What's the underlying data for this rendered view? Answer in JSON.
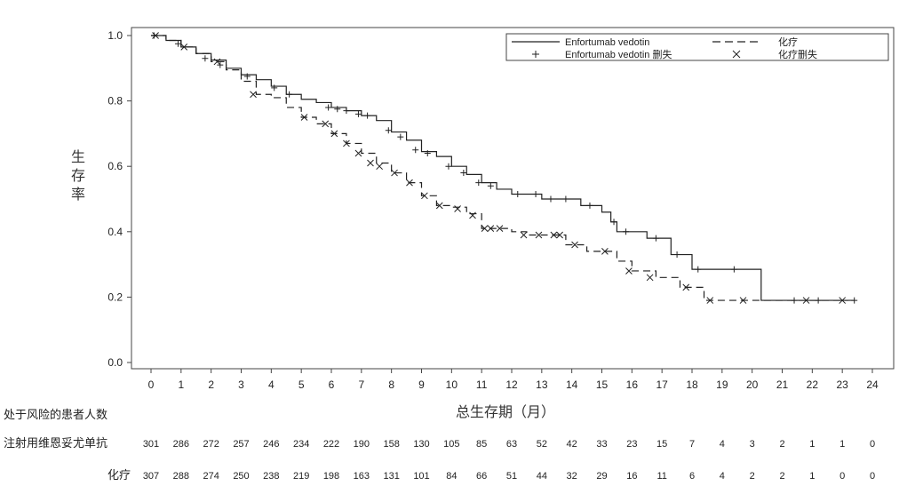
{
  "chart_data": {
    "type": "line",
    "subtype": "kaplan-meier",
    "ylabel_chars": [
      "生",
      "存",
      "率"
    ],
    "xlabel": "总生存期（月）",
    "ylim": [
      0,
      1.0
    ],
    "xlim": [
      0,
      24
    ],
    "yticks": [
      "0.0",
      "0.2",
      "0.4",
      "0.6",
      "0.8",
      "1.0"
    ],
    "xticks": [
      "0",
      "1",
      "2",
      "3",
      "4",
      "5",
      "6",
      "7",
      "8",
      "9",
      "10",
      "11",
      "12",
      "13",
      "14",
      "15",
      "16",
      "17",
      "18",
      "19",
      "20",
      "21",
      "22",
      "23",
      "24"
    ],
    "legend": {
      "position": "top-right",
      "entries": [
        {
          "label": "Enfortumab vedotin",
          "style": "solid-line"
        },
        {
          "label": "化疗",
          "style": "dashed-line"
        },
        {
          "label": "Enfortumab vedotin 删失",
          "style": "plus-marker"
        },
        {
          "label": "化疗删失",
          "style": "x-marker"
        }
      ]
    },
    "series": [
      {
        "name": "Enfortumab vedotin",
        "steps": [
          [
            0,
            1.0
          ],
          [
            0.5,
            0.985
          ],
          [
            1,
            0.965
          ],
          [
            1.5,
            0.945
          ],
          [
            2,
            0.925
          ],
          [
            2.5,
            0.9
          ],
          [
            3,
            0.88
          ],
          [
            3.5,
            0.865
          ],
          [
            4,
            0.845
          ],
          [
            4.5,
            0.82
          ],
          [
            5,
            0.805
          ],
          [
            5.5,
            0.795
          ],
          [
            6,
            0.78
          ],
          [
            6.5,
            0.77
          ],
          [
            7,
            0.755
          ],
          [
            7.5,
            0.74
          ],
          [
            8,
            0.705
          ],
          [
            8.5,
            0.68
          ],
          [
            9,
            0.645
          ],
          [
            9.5,
            0.63
          ],
          [
            10,
            0.6
          ],
          [
            10.5,
            0.575
          ],
          [
            11,
            0.55
          ],
          [
            11.5,
            0.53
          ],
          [
            12,
            0.515
          ],
          [
            12.5,
            0.515
          ],
          [
            13,
            0.5
          ],
          [
            14,
            0.5
          ],
          [
            14.3,
            0.48
          ],
          [
            15,
            0.46
          ],
          [
            15.3,
            0.43
          ],
          [
            15.5,
            0.4
          ],
          [
            16.5,
            0.38
          ],
          [
            17.3,
            0.33
          ],
          [
            18,
            0.285
          ],
          [
            19.5,
            0.285
          ],
          [
            20.3,
            0.19
          ],
          [
            23.4,
            0.19
          ]
        ],
        "censor": [
          [
            0.1,
            1.0
          ],
          [
            0.9,
            0.975
          ],
          [
            1.8,
            0.93
          ],
          [
            2.3,
            0.91
          ],
          [
            3.2,
            0.875
          ],
          [
            4.1,
            0.84
          ],
          [
            4.6,
            0.82
          ],
          [
            5.9,
            0.78
          ],
          [
            6.2,
            0.775
          ],
          [
            6.5,
            0.77
          ],
          [
            6.9,
            0.76
          ],
          [
            7.2,
            0.755
          ],
          [
            7.9,
            0.71
          ],
          [
            8.3,
            0.69
          ],
          [
            8.8,
            0.65
          ],
          [
            9.2,
            0.64
          ],
          [
            9.9,
            0.6
          ],
          [
            10.4,
            0.58
          ],
          [
            10.9,
            0.55
          ],
          [
            11.3,
            0.54
          ],
          [
            12.2,
            0.515
          ],
          [
            12.8,
            0.515
          ],
          [
            13.3,
            0.5
          ],
          [
            13.8,
            0.5
          ],
          [
            14.6,
            0.48
          ],
          [
            15.4,
            0.43
          ],
          [
            15.8,
            0.4
          ],
          [
            16.8,
            0.38
          ],
          [
            17.5,
            0.33
          ],
          [
            18.2,
            0.285
          ],
          [
            19.4,
            0.285
          ],
          [
            21.4,
            0.19
          ],
          [
            22.2,
            0.19
          ],
          [
            23.4,
            0.19
          ]
        ]
      },
      {
        "name": "化疗",
        "steps": [
          [
            0,
            1.0
          ],
          [
            0.5,
            0.985
          ],
          [
            1,
            0.965
          ],
          [
            1.5,
            0.945
          ],
          [
            2,
            0.92
          ],
          [
            2.5,
            0.895
          ],
          [
            3,
            0.86
          ],
          [
            3.5,
            0.82
          ],
          [
            4,
            0.81
          ],
          [
            4.5,
            0.78
          ],
          [
            5,
            0.75
          ],
          [
            5.5,
            0.73
          ],
          [
            6,
            0.7
          ],
          [
            6.5,
            0.67
          ],
          [
            7,
            0.64
          ],
          [
            7.5,
            0.61
          ],
          [
            8,
            0.58
          ],
          [
            8.5,
            0.55
          ],
          [
            9,
            0.51
          ],
          [
            9.5,
            0.48
          ],
          [
            10,
            0.475
          ],
          [
            10.5,
            0.455
          ],
          [
            11,
            0.41
          ],
          [
            11.5,
            0.41
          ],
          [
            12,
            0.4
          ],
          [
            12.5,
            0.39
          ],
          [
            13,
            0.39
          ],
          [
            13.5,
            0.39
          ],
          [
            13.8,
            0.36
          ],
          [
            14.5,
            0.34
          ],
          [
            15,
            0.34
          ],
          [
            15.5,
            0.31
          ],
          [
            16,
            0.28
          ],
          [
            16.8,
            0.26
          ],
          [
            17.6,
            0.23
          ],
          [
            18.4,
            0.19
          ],
          [
            19.5,
            0.19
          ],
          [
            23.2,
            0.19
          ]
        ],
        "censor": [
          [
            0.15,
            1.0
          ],
          [
            1.1,
            0.965
          ],
          [
            2.2,
            0.92
          ],
          [
            3.4,
            0.82
          ],
          [
            5.1,
            0.75
          ],
          [
            5.8,
            0.73
          ],
          [
            6.1,
            0.7
          ],
          [
            6.5,
            0.67
          ],
          [
            6.9,
            0.64
          ],
          [
            7.3,
            0.61
          ],
          [
            7.6,
            0.6
          ],
          [
            8.1,
            0.58
          ],
          [
            8.6,
            0.55
          ],
          [
            9.1,
            0.51
          ],
          [
            9.6,
            0.48
          ],
          [
            10.2,
            0.47
          ],
          [
            10.7,
            0.45
          ],
          [
            11.1,
            0.41
          ],
          [
            11.3,
            0.41
          ],
          [
            11.6,
            0.41
          ],
          [
            12.4,
            0.39
          ],
          [
            12.9,
            0.39
          ],
          [
            13.4,
            0.39
          ],
          [
            13.6,
            0.39
          ],
          [
            14.1,
            0.36
          ],
          [
            15.1,
            0.34
          ],
          [
            15.9,
            0.28
          ],
          [
            16.6,
            0.26
          ],
          [
            17.8,
            0.23
          ],
          [
            18.6,
            0.19
          ],
          [
            19.7,
            0.19
          ],
          [
            21.8,
            0.19
          ],
          [
            23.0,
            0.19
          ]
        ]
      }
    ]
  },
  "risk_table": {
    "title": "处于风险的患者人数",
    "rows": [
      {
        "label": "注射用维恩妥尤单抗",
        "values": [
          "301",
          "286",
          "272",
          "257",
          "246",
          "234",
          "222",
          "190",
          "158",
          "130",
          "105",
          "85",
          "63",
          "52",
          "42",
          "33",
          "23",
          "15",
          "7",
          "4",
          "3",
          "2",
          "1",
          "1",
          "0"
        ]
      },
      {
        "label": "化疗",
        "values": [
          "307",
          "288",
          "274",
          "250",
          "238",
          "219",
          "198",
          "163",
          "131",
          "101",
          "84",
          "66",
          "51",
          "44",
          "32",
          "29",
          "16",
          "11",
          "6",
          "4",
          "2",
          "2",
          "1",
          "0",
          "0"
        ]
      }
    ]
  }
}
